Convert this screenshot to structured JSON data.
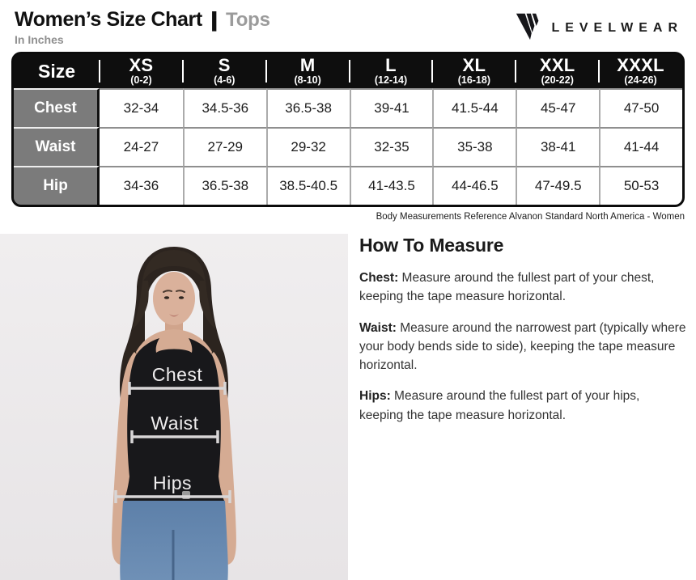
{
  "page": {
    "title": "Women’s Size Chart",
    "title_separator": "|",
    "subtitle": "Tops",
    "unit_note": "In Inches"
  },
  "brand": {
    "logo_text": "LEVELWEAR",
    "logo_mark_icon": "levelwear-w-triangle-mark"
  },
  "size_table": {
    "corner_label": "Size",
    "columns": [
      {
        "size": "XS",
        "range": "(0-2)"
      },
      {
        "size": "S",
        "range": "(4-6)"
      },
      {
        "size": "M",
        "range": "(8-10)"
      },
      {
        "size": "L",
        "range": "(12-14)"
      },
      {
        "size": "XL",
        "range": "(16-18)"
      },
      {
        "size": "XXL",
        "range": "(20-22)"
      },
      {
        "size": "XXXL",
        "range": "(24-26)"
      }
    ],
    "rows": [
      {
        "label": "Chest",
        "values": [
          "32-34",
          "34.5-36",
          "36.5-38",
          "39-41",
          "41.5-44",
          "45-47",
          "47-50"
        ]
      },
      {
        "label": "Waist",
        "values": [
          "24-27",
          "27-29",
          "29-32",
          "32-35",
          "35-38",
          "38-41",
          "41-44"
        ]
      },
      {
        "label": "Hip",
        "values": [
          "34-36",
          "36.5-38",
          "38.5-40.5",
          "41-43.5",
          "44-46.5",
          "47-49.5",
          "50-53"
        ]
      }
    ],
    "caption": "Body Measurements Reference Alvanon Standard North America - Women"
  },
  "model_figure": {
    "labels": {
      "chest": "Chest",
      "waist": "Waist",
      "hips": "Hips"
    }
  },
  "how_to_measure": {
    "heading": "How To Measure",
    "items": [
      {
        "term": "Chest:",
        "text": " Measure around the fullest part of your chest, keeping the tape measure horizontal."
      },
      {
        "term": "Waist:",
        "text": " Measure around the narrowest part (typically where your body bends side to side), keeping the tape measure horizontal."
      },
      {
        "term": "Hips:",
        "text": " Measure around the fullest part of your hips, keeping the tape measure horizontal."
      }
    ]
  },
  "colors": {
    "table_header_bg": "#0e0e0e",
    "table_label_bg": "#7b7b7b",
    "table_border": "#0b0b0b",
    "subtitle_gray": "#9b9b9b",
    "body_text": "#333333",
    "photo_background": "#eceaeb",
    "measure_line": "#d8d6d7",
    "tank_top": "#18181b",
    "denim": "#6184ac",
    "skin": "#d5ab93",
    "hair": "#2c241f"
  }
}
